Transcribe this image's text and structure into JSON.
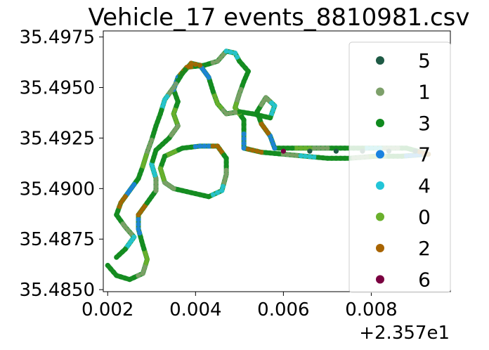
{
  "chart_data": {
    "type": "scatter",
    "title": "Vehicle_17 events_8810981.csv",
    "xlabel": "",
    "ylabel": "",
    "x_offset_label": "+2.357e1",
    "xlim": [
      0.0019,
      0.0098
    ],
    "ylim": [
      35.4849,
      35.4978
    ],
    "x_ticks": [
      0.002,
      0.004,
      0.006,
      0.008
    ],
    "x_tick_labels": [
      "0.002",
      "0.004",
      "0.006",
      "0.008"
    ],
    "y_ticks": [
      35.485,
      35.4875,
      35.49,
      35.4925,
      35.495,
      35.4975
    ],
    "y_tick_labels": [
      "35.4850",
      "35.4875",
      "35.4900",
      "35.4925",
      "35.4950",
      "35.4975"
    ],
    "grid": false,
    "legend_position": "right",
    "series": [
      {
        "name": "5",
        "color": "#1e5a45"
      },
      {
        "name": "1",
        "color": "#7da06a"
      },
      {
        "name": "3",
        "color": "#0f8a1e"
      },
      {
        "name": "7",
        "color": "#1a82e0"
      },
      {
        "name": "4",
        "color": "#22c5d8"
      },
      {
        "name": "0",
        "color": "#6ab02c"
      },
      {
        "name": "2",
        "color": "#a86400"
      },
      {
        "name": "6",
        "color": "#7a0040"
      }
    ],
    "route": [
      [
        0.002,
        35.4862
      ],
      [
        0.0022,
        35.4857
      ],
      [
        0.0025,
        35.4855
      ],
      [
        0.0028,
        35.4858
      ],
      [
        0.0029,
        35.4865
      ],
      [
        0.0028,
        35.4872
      ],
      [
        0.0027,
        35.488
      ],
      [
        0.0027,
        35.4887
      ],
      [
        0.0029,
        35.4893
      ],
      [
        0.0031,
        35.4899
      ],
      [
        0.0031,
        35.4905
      ],
      [
        0.003,
        35.4912
      ],
      [
        0.0031,
        35.4919
      ],
      [
        0.0034,
        35.4925
      ],
      [
        0.0036,
        35.4931
      ],
      [
        0.0035,
        35.4937
      ],
      [
        0.0036,
        35.4943
      ],
      [
        0.0035,
        35.4949
      ],
      [
        0.0036,
        35.4955
      ],
      [
        0.0038,
        35.496
      ],
      [
        0.0042,
        35.4961
      ],
      [
        0.0045,
        35.4963
      ],
      [
        0.0047,
        35.4968
      ],
      [
        0.0049,
        35.4967
      ],
      [
        0.005,
        35.4963
      ],
      [
        0.0052,
        35.4958
      ],
      [
        0.0051,
        35.4953
      ],
      [
        0.005,
        35.4947
      ],
      [
        0.0049,
        35.494
      ],
      [
        0.0051,
        35.4934
      ],
      [
        0.0051,
        35.4927
      ],
      [
        0.0051,
        35.492
      ],
      [
        0.0055,
        35.4918
      ],
      [
        0.006,
        35.4917
      ],
      [
        0.0065,
        35.4916
      ],
      [
        0.007,
        35.4915
      ],
      [
        0.0075,
        35.4915
      ],
      [
        0.0081,
        35.4916
      ],
      [
        0.0087,
        35.4916
      ],
      [
        0.0093,
        35.4917
      ],
      [
        0.0088,
        35.492
      ],
      [
        0.0082,
        35.492
      ],
      [
        0.0076,
        35.492
      ],
      [
        0.007,
        35.492
      ],
      [
        0.0064,
        35.492
      ],
      [
        0.0058,
        35.492
      ],
      [
        0.0057,
        35.4926
      ],
      [
        0.0055,
        35.4932
      ],
      [
        0.0054,
        35.4938
      ],
      [
        0.0056,
        35.4945
      ],
      [
        0.0058,
        35.4941
      ],
      [
        0.0057,
        35.4935
      ],
      [
        0.0053,
        35.4937
      ],
      [
        0.005,
        35.4938
      ],
      [
        0.0047,
        35.4937
      ],
      [
        0.0045,
        35.4942
      ],
      [
        0.0044,
        35.4948
      ],
      [
        0.0043,
        35.4955
      ],
      [
        0.0041,
        35.4961
      ],
      [
        0.0039,
        35.4962
      ],
      [
        0.0037,
        35.4957
      ],
      [
        0.0035,
        35.495
      ],
      [
        0.0033,
        35.4944
      ],
      [
        0.0032,
        35.4937
      ],
      [
        0.0031,
        35.4931
      ],
      [
        0.003,
        35.4924
      ],
      [
        0.0029,
        35.4918
      ],
      [
        0.0028,
        35.4911
      ],
      [
        0.0027,
        35.4905
      ],
      [
        0.0025,
        35.4899
      ],
      [
        0.0023,
        35.4893
      ],
      [
        0.0022,
        35.4887
      ],
      [
        0.0024,
        35.4881
      ],
      [
        0.0026,
        35.4876
      ],
      [
        0.0024,
        35.487
      ],
      [
        0.0022,
        35.4866
      ]
    ],
    "loop": [
      [
        0.0033,
        35.4916
      ],
      [
        0.0037,
        35.492
      ],
      [
        0.0041,
        35.4921
      ],
      [
        0.0045,
        35.4921
      ],
      [
        0.0047,
        35.4915
      ],
      [
        0.0047,
        35.4907
      ],
      [
        0.0046,
        35.4899
      ],
      [
        0.0043,
        35.4896
      ],
      [
        0.0039,
        35.4898
      ],
      [
        0.0035,
        35.49
      ],
      [
        0.0033,
        35.4903
      ],
      [
        0.0032,
        35.491
      ],
      [
        0.0033,
        35.4916
      ]
    ]
  }
}
